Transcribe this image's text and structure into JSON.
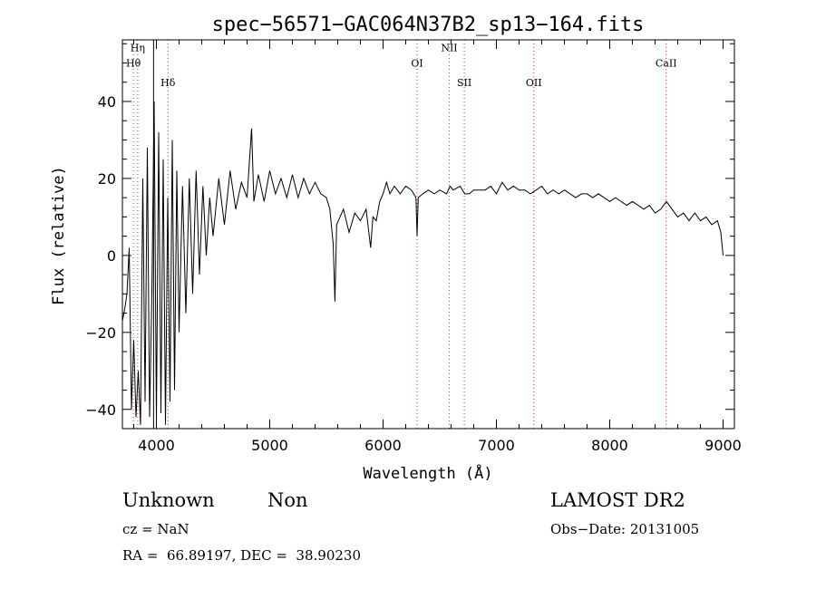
{
  "chart_data": {
    "type": "line",
    "title": "spec−56571−GAC064N37B2_sp13−164.fits",
    "xlabel": "Wavelength (Å)",
    "ylabel": "Flux (relative)",
    "xlim": [
      3700,
      9100
    ],
    "ylim": [
      -45,
      56
    ],
    "x_ticks": [
      4000,
      5000,
      6000,
      7000,
      8000,
      9000
    ],
    "y_ticks": [
      -40,
      -20,
      0,
      20,
      40
    ],
    "y_tick_labels": [
      "−40",
      "−20",
      "0",
      "20",
      "40"
    ],
    "grid": false,
    "line_color": "#000000",
    "marker_color": "#e03030",
    "vertical_line": 3975,
    "lines": [
      {
        "name": "Hη",
        "x": 3835,
        "label_y": 53
      },
      {
        "name": "Hθ",
        "x": 3797,
        "label_y": 49
      },
      {
        "name": "Hδ",
        "x": 4102,
        "label_y": 44
      },
      {
        "name": "NII",
        "x": 6584,
        "label_y": 53
      },
      {
        "name": "OI",
        "x": 6300,
        "label_y": 49
      },
      {
        "name": "SII",
        "x": 6717,
        "label_y": 44
      },
      {
        "name": "OII",
        "x": 7330,
        "label_y": 44
      },
      {
        "name": "CaII",
        "x": 8498,
        "label_y": 49
      }
    ],
    "series": [
      {
        "x": [
          3700,
          3720,
          3740,
          3760,
          3780,
          3800,
          3820,
          3840,
          3860,
          3880,
          3900,
          3920,
          3940,
          3960,
          3980,
          4000,
          4020,
          4040,
          4060,
          4080,
          4100,
          4120,
          4140,
          4160,
          4180,
          4200,
          4230,
          4260,
          4290,
          4320,
          4350,
          4380,
          4410,
          4440,
          4470,
          4500,
          4550,
          4600,
          4650,
          4700,
          4750,
          4800,
          4840,
          4860,
          4900,
          4950,
          5000,
          5050,
          5100,
          5150,
          5200,
          5250,
          5300,
          5350,
          5400,
          5450,
          5500,
          5530,
          5560,
          5575,
          5590,
          5620,
          5650,
          5700,
          5750,
          5800,
          5850,
          5890,
          5910,
          5940,
          5970,
          6000,
          6030,
          6060,
          6100,
          6150,
          6200,
          6250,
          6290,
          6300,
          6310,
          6350,
          6400,
          6450,
          6500,
          6560,
          6590,
          6620,
          6680,
          6720,
          6760,
          6800,
          6850,
          6900,
          6950,
          7000,
          7050,
          7100,
          7150,
          7200,
          7250,
          7300,
          7350,
          7400,
          7450,
          7500,
          7550,
          7600,
          7650,
          7700,
          7750,
          7800,
          7850,
          7900,
          7950,
          8000,
          8050,
          8100,
          8150,
          8200,
          8250,
          8300,
          8350,
          8400,
          8450,
          8500,
          8550,
          8600,
          8650,
          8700,
          8750,
          8800,
          8850,
          8900,
          8950,
          8980,
          9000
        ],
        "y": [
          -17,
          -14,
          -10,
          2,
          -40,
          -22,
          -42,
          -30,
          -44,
          20,
          -38,
          28,
          -42,
          -10,
          40,
          -43,
          32,
          -41,
          25,
          -44,
          15,
          -38,
          30,
          -35,
          22,
          -20,
          18,
          -15,
          20,
          -10,
          22,
          -5,
          18,
          0,
          15,
          5,
          20,
          8,
          22,
          12,
          19,
          15,
          33,
          14,
          21,
          14,
          22,
          16,
          20,
          15,
          21,
          15,
          20,
          16,
          19,
          16,
          15,
          12,
          3,
          -12,
          8,
          10,
          12,
          6,
          11,
          9,
          12,
          2,
          10,
          9,
          14,
          16,
          19,
          16,
          18,
          16,
          18,
          17,
          15,
          5,
          15,
          16,
          17,
          16,
          17,
          16,
          18,
          17,
          18,
          16,
          16,
          17,
          17,
          17,
          18,
          16,
          19,
          17,
          18,
          17,
          17,
          16,
          17,
          18,
          16,
          17,
          16,
          17,
          16,
          15,
          16,
          16,
          15,
          16,
          15,
          14,
          15,
          14,
          13,
          14,
          13,
          12,
          13,
          11,
          12,
          14,
          12,
          10,
          11,
          9,
          11,
          9,
          10,
          8,
          9,
          6,
          0
        ]
      }
    ]
  },
  "info": {
    "class_label": "Unknown",
    "subclass_label": "Non",
    "survey_label": "LAMOST DR2",
    "cz_text": "cz = NaN",
    "obs_date_text": "Obs−Date: 20131005",
    "radec_text": "RA =  66.89197, DEC =  38.90230"
  }
}
